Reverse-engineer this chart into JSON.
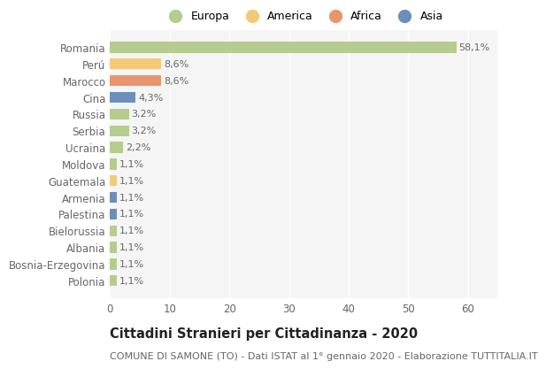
{
  "title": "Cittadini Stranieri per Cittadinanza - 2020",
  "subtitle": "COMUNE DI SAMONE (TO) - Dati ISTAT al 1° gennaio 2020 - Elaborazione TUTTITALIA.IT",
  "categories": [
    "Romania",
    "Perú",
    "Marocco",
    "Cina",
    "Russia",
    "Serbia",
    "Ucraina",
    "Moldova",
    "Guatemala",
    "Armenia",
    "Palestina",
    "Bielorussia",
    "Albania",
    "Bosnia-Erzegovina",
    "Polonia"
  ],
  "values": [
    58.1,
    8.6,
    8.6,
    4.3,
    3.2,
    3.2,
    2.2,
    1.1,
    1.1,
    1.1,
    1.1,
    1.1,
    1.1,
    1.1,
    1.1
  ],
  "labels": [
    "58,1%",
    "8,6%",
    "8,6%",
    "4,3%",
    "3,2%",
    "3,2%",
    "2,2%",
    "1,1%",
    "1,1%",
    "1,1%",
    "1,1%",
    "1,1%",
    "1,1%",
    "1,1%",
    "1,1%"
  ],
  "continents": [
    "Europa",
    "America",
    "Africa",
    "Asia",
    "Europa",
    "Europa",
    "Europa",
    "Europa",
    "America",
    "Asia",
    "Asia",
    "Europa",
    "Europa",
    "Europa",
    "Europa"
  ],
  "continent_colors": {
    "Europa": "#b5cc8e",
    "America": "#f5c97a",
    "Africa": "#e8956d",
    "Asia": "#6b8fba"
  },
  "legend_order": [
    "Europa",
    "America",
    "Africa",
    "Asia"
  ],
  "xlim": [
    0,
    65
  ],
  "background_color": "#ffffff",
  "plot_bg_color": "#f5f5f5",
  "grid_color": "#ffffff",
  "text_color": "#666666",
  "title_color": "#222222",
  "title_fontsize": 10.5,
  "subtitle_fontsize": 8,
  "tick_fontsize": 8.5,
  "label_fontsize": 8,
  "legend_fontsize": 9,
  "bar_height": 0.65
}
